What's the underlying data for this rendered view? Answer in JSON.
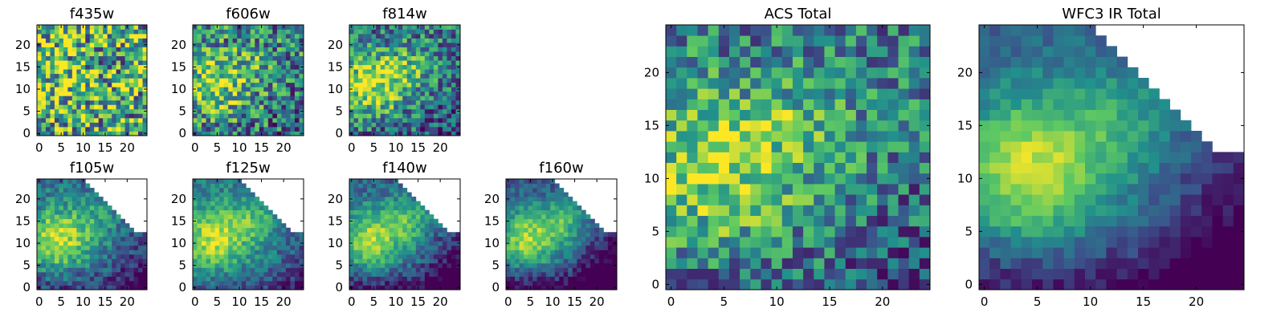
{
  "chart_data": [
    {
      "type": "heatmap",
      "id": "f435w",
      "title": "f435w",
      "xticks": [
        0,
        5,
        10,
        15,
        20
      ],
      "yticks": [
        0,
        5,
        10,
        15,
        20
      ],
      "xlim": [
        0,
        25
      ],
      "ylim": [
        0,
        25
      ],
      "grid": 25
    },
    {
      "type": "heatmap",
      "id": "f606w",
      "title": "f606w",
      "xticks": [
        0,
        5,
        10,
        15,
        20
      ],
      "yticks": [
        0,
        5,
        10,
        15,
        20
      ],
      "xlim": [
        0,
        25
      ],
      "ylim": [
        0,
        25
      ],
      "grid": 25
    },
    {
      "type": "heatmap",
      "id": "f814w",
      "title": "f814w",
      "xticks": [
        0,
        5,
        10,
        15,
        20
      ],
      "yticks": [
        0,
        5,
        10,
        15,
        20
      ],
      "xlim": [
        0,
        25
      ],
      "ylim": [
        0,
        25
      ],
      "grid": 25
    },
    {
      "type": "heatmap",
      "id": "f105w",
      "title": "f105w",
      "xticks": [
        0,
        5,
        10,
        15,
        20
      ],
      "yticks": [
        0,
        5,
        10,
        15,
        20
      ],
      "xlim": [
        0,
        25
      ],
      "ylim": [
        0,
        25
      ],
      "grid": 25
    },
    {
      "type": "heatmap",
      "id": "f125w",
      "title": "f125w",
      "xticks": [
        0,
        5,
        10,
        15,
        20
      ],
      "yticks": [
        0,
        5,
        10,
        15,
        20
      ],
      "xlim": [
        0,
        25
      ],
      "ylim": [
        0,
        25
      ],
      "grid": 25
    },
    {
      "type": "heatmap",
      "id": "f140w",
      "title": "f140w",
      "xticks": [
        0,
        5,
        10,
        15,
        20
      ],
      "yticks": [
        0,
        5,
        10,
        15,
        20
      ],
      "xlim": [
        0,
        25
      ],
      "ylim": [
        0,
        25
      ],
      "grid": 25
    },
    {
      "type": "heatmap",
      "id": "f160w",
      "title": "f160w",
      "xticks": [
        0,
        5,
        10,
        15,
        20
      ],
      "yticks": [
        0,
        5,
        10,
        15,
        20
      ],
      "xlim": [
        0,
        25
      ],
      "ylim": [
        0,
        25
      ],
      "grid": 25
    },
    {
      "type": "heatmap",
      "id": "acs-total",
      "title": "ACS Total",
      "xticks": [
        0,
        5,
        10,
        15,
        20
      ],
      "yticks": [
        0,
        5,
        10,
        15,
        20
      ],
      "xlim": [
        0,
        25
      ],
      "ylim": [
        0,
        25
      ],
      "grid": 25
    },
    {
      "type": "heatmap",
      "id": "wfc3-ir-total",
      "title": "WFC3 IR Total",
      "xticks": [
        0,
        5,
        10,
        15,
        20
      ],
      "yticks": [
        0,
        5,
        10,
        15,
        20
      ],
      "xlim": [
        0,
        25
      ],
      "ylim": [
        0,
        25
      ],
      "grid": 25
    }
  ],
  "colormap": {
    "name": "viridis",
    "stops": [
      "#440154",
      "#3b528b",
      "#21918c",
      "#5ec962",
      "#fde725"
    ]
  }
}
